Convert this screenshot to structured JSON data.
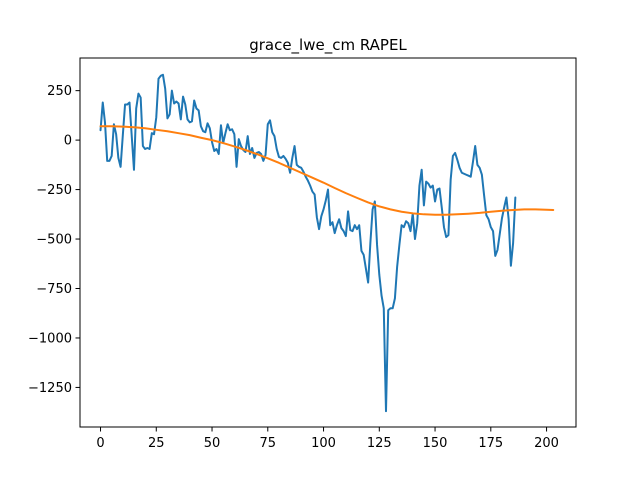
{
  "chart_data": {
    "type": "line",
    "title": "grace_lwe_cm RAPEL",
    "xlabel": "",
    "ylabel": "",
    "xlim": [
      -9.2,
      213.2
    ],
    "ylim": [
      -1450,
      415
    ],
    "grid": false,
    "legend": "none",
    "x_ticks": [
      0,
      25,
      50,
      75,
      100,
      125,
      150,
      175,
      200
    ],
    "y_ticks": [
      250,
      0,
      -250,
      -500,
      -750,
      -1000,
      -1250
    ],
    "x_tick_labels": [
      "0",
      "25",
      "50",
      "75",
      "100",
      "125",
      "150",
      "175",
      "200"
    ],
    "y_tick_labels": [
      "250",
      "0",
      "−250",
      "−500",
      "−750",
      "−1000",
      "−1250"
    ],
    "series": [
      {
        "color": "#1f77b4",
        "points": [
          [
            0,
            50
          ],
          [
            1,
            190
          ],
          [
            2,
            90
          ],
          [
            3,
            -105
          ],
          [
            4,
            -105
          ],
          [
            5,
            -80
          ],
          [
            6,
            80
          ],
          [
            7,
            30
          ],
          [
            8,
            -90
          ],
          [
            9,
            -135
          ],
          [
            10,
            25
          ],
          [
            11,
            180
          ],
          [
            12,
            180
          ],
          [
            13,
            190
          ],
          [
            14,
            20
          ],
          [
            15,
            -150
          ],
          [
            16,
            160
          ],
          [
            17,
            235
          ],
          [
            18,
            215
          ],
          [
            19,
            -30
          ],
          [
            20,
            -45
          ],
          [
            21,
            -40
          ],
          [
            22,
            -45
          ],
          [
            23,
            35
          ],
          [
            24,
            30
          ],
          [
            25,
            115
          ],
          [
            26,
            310
          ],
          [
            27,
            325
          ],
          [
            28,
            330
          ],
          [
            29,
            260
          ],
          [
            30,
            110
          ],
          [
            31,
            130
          ],
          [
            32,
            250
          ],
          [
            33,
            185
          ],
          [
            34,
            195
          ],
          [
            35,
            185
          ],
          [
            36,
            105
          ],
          [
            37,
            220
          ],
          [
            38,
            180
          ],
          [
            39,
            105
          ],
          [
            40,
            90
          ],
          [
            41,
            95
          ],
          [
            42,
            200
          ],
          [
            43,
            160
          ],
          [
            44,
            150
          ],
          [
            45,
            70
          ],
          [
            46,
            45
          ],
          [
            47,
            40
          ],
          [
            48,
            85
          ],
          [
            49,
            60
          ],
          [
            50,
            -10
          ],
          [
            51,
            -55
          ],
          [
            52,
            -45
          ],
          [
            53,
            -70
          ],
          [
            54,
            75
          ],
          [
            55,
            -15
          ],
          [
            56,
            35
          ],
          [
            57,
            80
          ],
          [
            58,
            50
          ],
          [
            59,
            55
          ],
          [
            60,
            30
          ],
          [
            61,
            -135
          ],
          [
            62,
            5
          ],
          [
            63,
            -30
          ],
          [
            64,
            -50
          ],
          [
            65,
            -60
          ],
          [
            66,
            20
          ],
          [
            67,
            -70
          ],
          [
            68,
            -40
          ],
          [
            69,
            -90
          ],
          [
            70,
            -65
          ],
          [
            71,
            -60
          ],
          [
            72,
            -70
          ],
          [
            73,
            -105
          ],
          [
            74,
            -75
          ],
          [
            75,
            80
          ],
          [
            76,
            100
          ],
          [
            77,
            40
          ],
          [
            78,
            20
          ],
          [
            79,
            -45
          ],
          [
            80,
            -85
          ],
          [
            81,
            -90
          ],
          [
            82,
            -80
          ],
          [
            83,
            -95
          ],
          [
            84,
            -115
          ],
          [
            85,
            -165
          ],
          [
            86,
            -90
          ],
          [
            87,
            -30
          ],
          [
            88,
            -125
          ],
          [
            89,
            -135
          ],
          [
            90,
            -140
          ],
          [
            91,
            -160
          ],
          [
            92,
            -185
          ],
          [
            93,
            -205
          ],
          [
            94,
            -230
          ],
          [
            95,
            -260
          ],
          [
            96,
            -275
          ],
          [
            97,
            -390
          ],
          [
            98,
            -450
          ],
          [
            99,
            -385
          ],
          [
            100,
            -350
          ],
          [
            101,
            -305
          ],
          [
            102,
            -250
          ],
          [
            103,
            -430
          ],
          [
            104,
            -415
          ],
          [
            105,
            -470
          ],
          [
            106,
            -430
          ],
          [
            107,
            -400
          ],
          [
            108,
            -445
          ],
          [
            109,
            -460
          ],
          [
            110,
            -485
          ],
          [
            111,
            -360
          ],
          [
            112,
            -455
          ],
          [
            113,
            -460
          ],
          [
            114,
            -430
          ],
          [
            115,
            -450
          ],
          [
            116,
            -430
          ],
          [
            117,
            -560
          ],
          [
            118,
            -580
          ],
          [
            119,
            -650
          ],
          [
            120,
            -720
          ],
          [
            121,
            -520
          ],
          [
            122,
            -350
          ],
          [
            123,
            -310
          ],
          [
            124,
            -530
          ],
          [
            125,
            -680
          ],
          [
            126,
            -785
          ],
          [
            127,
            -850
          ],
          [
            128,
            -1370
          ],
          [
            129,
            -860
          ],
          [
            130,
            -850
          ],
          [
            131,
            -850
          ],
          [
            132,
            -800
          ],
          [
            133,
            -640
          ],
          [
            134,
            -530
          ],
          [
            135,
            -430
          ],
          [
            136,
            -440
          ],
          [
            137,
            -410
          ],
          [
            138,
            -420
          ],
          [
            139,
            -460
          ],
          [
            140,
            -370
          ],
          [
            141,
            -500
          ],
          [
            142,
            -420
          ],
          [
            143,
            -230
          ],
          [
            144,
            -150
          ],
          [
            145,
            -330
          ],
          [
            146,
            -210
          ],
          [
            147,
            -220
          ],
          [
            148,
            -240
          ],
          [
            149,
            -230
          ],
          [
            150,
            -310
          ],
          [
            151,
            -250
          ],
          [
            152,
            -245
          ],
          [
            153,
            -340
          ],
          [
            154,
            -440
          ],
          [
            155,
            -490
          ],
          [
            156,
            -480
          ],
          [
            157,
            -200
          ],
          [
            158,
            -80
          ],
          [
            159,
            -65
          ],
          [
            160,
            -100
          ],
          [
            161,
            -140
          ],
          [
            162,
            -165
          ],
          [
            163,
            -170
          ],
          [
            164,
            -175
          ],
          [
            165,
            -180
          ],
          [
            166,
            -185
          ],
          [
            167,
            -110
          ],
          [
            168,
            -30
          ],
          [
            169,
            -125
          ],
          [
            170,
            -140
          ],
          [
            171,
            -175
          ],
          [
            172,
            -280
          ],
          [
            173,
            -380
          ],
          [
            174,
            -400
          ],
          [
            175,
            -440
          ],
          [
            176,
            -460
          ],
          [
            177,
            -585
          ],
          [
            178,
            -555
          ],
          [
            179,
            -475
          ],
          [
            180,
            -395
          ],
          [
            181,
            -340
          ],
          [
            182,
            -290
          ],
          [
            183,
            -400
          ],
          [
            184,
            -635
          ],
          [
            185,
            -520
          ],
          [
            186,
            -290
          ]
        ]
      },
      {
        "color": "#ff7f0e",
        "points": [
          [
            0,
            70
          ],
          [
            5,
            70
          ],
          [
            10,
            68
          ],
          [
            15,
            65
          ],
          [
            20,
            60
          ],
          [
            25,
            52
          ],
          [
            30,
            45
          ],
          [
            35,
            35
          ],
          [
            40,
            25
          ],
          [
            45,
            12
          ],
          [
            50,
            0
          ],
          [
            55,
            -15
          ],
          [
            60,
            -32
          ],
          [
            65,
            -50
          ],
          [
            70,
            -70
          ],
          [
            75,
            -92
          ],
          [
            80,
            -115
          ],
          [
            85,
            -140
          ],
          [
            90,
            -165
          ],
          [
            95,
            -190
          ],
          [
            100,
            -215
          ],
          [
            105,
            -242
          ],
          [
            110,
            -268
          ],
          [
            115,
            -292
          ],
          [
            120,
            -315
          ],
          [
            125,
            -335
          ],
          [
            130,
            -350
          ],
          [
            135,
            -362
          ],
          [
            140,
            -370
          ],
          [
            145,
            -375
          ],
          [
            150,
            -377
          ],
          [
            155,
            -377
          ],
          [
            160,
            -375
          ],
          [
            165,
            -372
          ],
          [
            170,
            -368
          ],
          [
            175,
            -362
          ],
          [
            180,
            -357
          ],
          [
            185,
            -353
          ],
          [
            190,
            -350
          ],
          [
            195,
            -350
          ],
          [
            200,
            -352
          ],
          [
            203,
            -353
          ]
        ]
      }
    ]
  }
}
